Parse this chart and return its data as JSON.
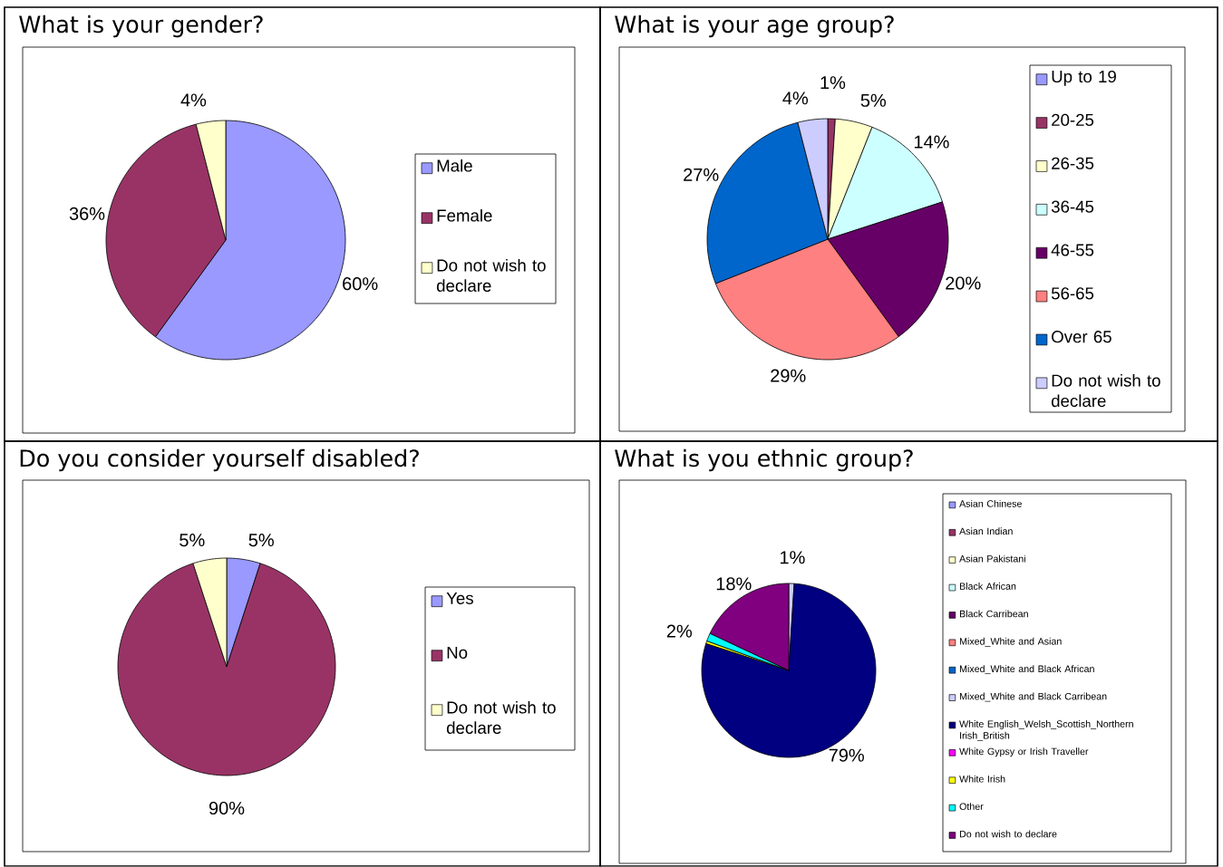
{
  "chart_data": [
    {
      "type": "pie",
      "title": "What is your gender?",
      "categories": [
        "Male",
        "Female",
        "Do not wish to declare"
      ],
      "values": [
        60,
        36,
        4
      ],
      "colors": [
        "#9999ff",
        "#993366",
        "#ffffcc"
      ],
      "value_labels": [
        "60%",
        "36%",
        "4%"
      ],
      "legend": "right"
    },
    {
      "type": "pie",
      "title": "What is your age group?",
      "categories": [
        "Up to 19",
        "20-25",
        "26-35",
        "36-45",
        "46-55",
        "56-65",
        "Over 65",
        "Do not wish to declare"
      ],
      "values": [
        0,
        1,
        5,
        14,
        20,
        29,
        27,
        4
      ],
      "colors": [
        "#9999ff",
        "#993366",
        "#ffffcc",
        "#ccffff",
        "#660066",
        "#ff8080",
        "#0066cc",
        "#ccccff"
      ],
      "value_labels": [
        null,
        "1%",
        "5%",
        "14%",
        "20%",
        "29%",
        "27%",
        "4%"
      ],
      "legend": "right"
    },
    {
      "type": "pie",
      "title": "Do you consider yourself disabled?",
      "categories": [
        "Yes",
        "No",
        "Do not wish to declare"
      ],
      "values": [
        5,
        90,
        5
      ],
      "colors": [
        "#9999ff",
        "#993366",
        "#ffffcc"
      ],
      "value_labels": [
        "5%",
        "90%",
        "5%"
      ],
      "legend": "right"
    },
    {
      "type": "pie",
      "title": "What is you ethnic group?",
      "categories": [
        "Asian Chinese",
        "Asian Indian",
        "Asian Pakistani",
        "Black African",
        "Black Carribean",
        "Mixed_White and Asian",
        "Mixed_White and Black African",
        "Mixed_White and Black Carribean",
        "White English_Welsh_Scottish_Northern Irish_British",
        "White Gypsy or Irish Traveller",
        "White Irish",
        "Other",
        "Do not wish to declare"
      ],
      "values": [
        0,
        null,
        0,
        0,
        0,
        0,
        0,
        1,
        79,
        null,
        0.5,
        1.5,
        18
      ],
      "colors": [
        "#9999ff",
        "#993366",
        "#ffffcc",
        "#ccffff",
        "#660066",
        "#ff8080",
        "#0066cc",
        "#ccccff",
        "#000080",
        "#ff00ff",
        "#ffff00",
        "#00ffff",
        "#800080"
      ],
      "value_labels": [
        null,
        null,
        null,
        null,
        null,
        null,
        null,
        "1%",
        "79%",
        null,
        null,
        "2%",
        "18%"
      ],
      "legend": "right"
    }
  ]
}
